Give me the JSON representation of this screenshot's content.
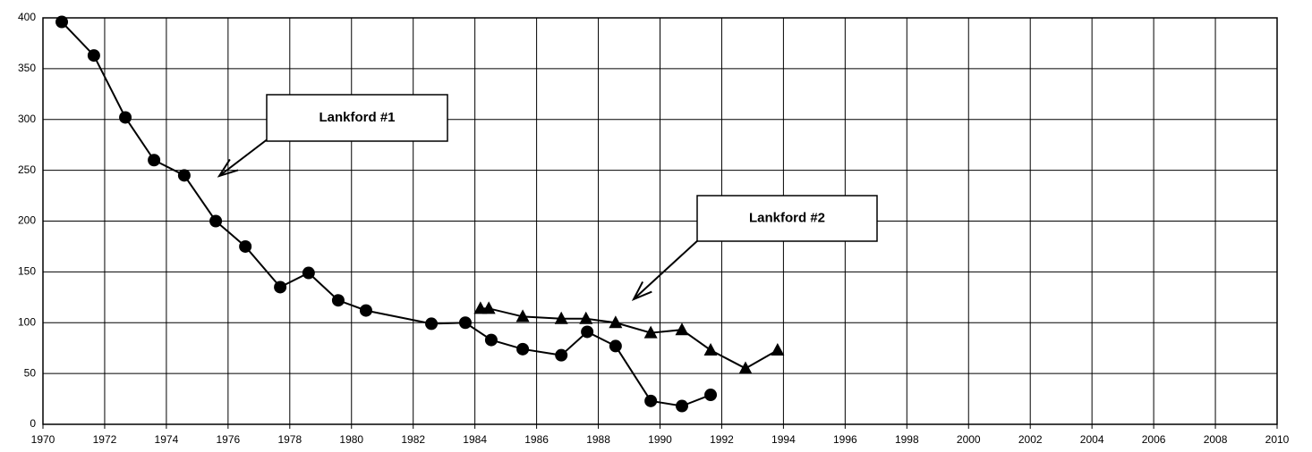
{
  "chart_data": {
    "type": "line",
    "annotations": [
      "Lankford #1",
      "Lankford #2"
    ],
    "series": [
      {
        "marker": "circle",
        "color": "#000000",
        "x": [
          1970.61,
          1971.65,
          1972.67,
          1973.6,
          1974.58,
          1975.6,
          1976.56,
          1977.69,
          1978.61,
          1979.57,
          1980.47,
          1982.59,
          1983.69,
          1984.53,
          1985.55,
          1986.8,
          1987.64,
          1988.56,
          1989.7,
          1990.71,
          1991.64
        ],
        "values": [
          396,
          363,
          302,
          260,
          245,
          200,
          175,
          135,
          149,
          122,
          112,
          99,
          100,
          83,
          74,
          68,
          91,
          77,
          23,
          18,
          29
        ]
      },
      {
        "marker": "triangle",
        "color": "#000000",
        "x": [
          1984.18,
          1984.45,
          1985.55,
          1986.8,
          1987.6,
          1988.56,
          1989.7,
          1990.71,
          1991.64,
          1992.77,
          1993.81
        ],
        "values": [
          114,
          114,
          106,
          104,
          104,
          100,
          90,
          93,
          73,
          55,
          73
        ]
      }
    ],
    "xlim": [
      1970,
      2010
    ],
    "xticks": [
      1970,
      1972,
      1974,
      1976,
      1978,
      1980,
      1982,
      1984,
      1986,
      1988,
      1990,
      1992,
      1994,
      1996,
      1998,
      2000,
      2002,
      2004,
      2006,
      2008,
      2010
    ],
    "ylim": [
      0,
      400
    ],
    "yticks": [
      0,
      50,
      100,
      150,
      200,
      250,
      300,
      350,
      400
    ],
    "grid": true
  }
}
